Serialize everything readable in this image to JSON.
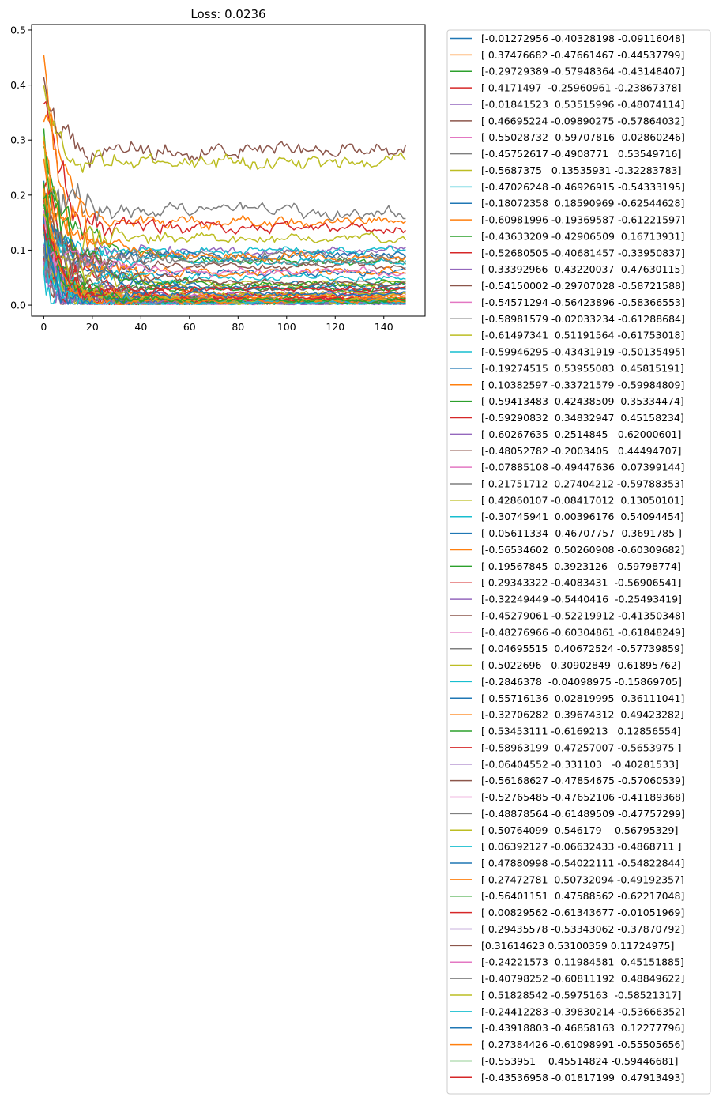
{
  "chart_data": {
    "type": "line",
    "title": "Loss: 0.0236",
    "xlabel": "",
    "ylabel": "",
    "xlim": [
      -5,
      157
    ],
    "ylim": [
      -0.02,
      0.51
    ],
    "xticks": [
      "0",
      "20",
      "40",
      "60",
      "80",
      "100",
      "120",
      "140"
    ],
    "yticks": [
      "0.0",
      "0.1",
      "0.2",
      "0.3",
      "0.4",
      "0.5"
    ],
    "n_points": 150,
    "legend_position": "outside-right",
    "series": [
      {
        "name": "[-0.01272956 -0.40328198 -0.09116048]",
        "color": "#1f77b4",
        "start": 0.1,
        "end": 0.035
      },
      {
        "name": "[ 0.37476682 -0.47661467 -0.44537799]",
        "color": "#ff7f0e",
        "start": 0.45,
        "end": 0.15
      },
      {
        "name": "[-0.29729389 -0.57948364 -0.43148407]",
        "color": "#2ca02c",
        "start": 0.3,
        "end": 0.01
      },
      {
        "name": "[ 0.4171497  -0.25960961 -0.23867378]",
        "color": "#d62728",
        "start": 0.39,
        "end": 0.14
      },
      {
        "name": "[-0.01841523  0.53515996 -0.48074114]",
        "color": "#9467bd",
        "start": 0.2,
        "end": 0.1
      },
      {
        "name": "[ 0.46695224 -0.09890275 -0.57864032]",
        "color": "#8c564b",
        "start": 0.4,
        "end": 0.28
      },
      {
        "name": "[-0.55028732 -0.59707816 -0.02860246]",
        "color": "#e377c2",
        "start": 0.08,
        "end": 0.02
      },
      {
        "name": "[-0.45752617 -0.4908771   0.53549716]",
        "color": "#7f7f7f",
        "start": 0.12,
        "end": 0.17
      },
      {
        "name": "[-0.5687375   0.13535931 -0.32283783]",
        "color": "#bcbd22",
        "start": 0.42,
        "end": 0.26
      },
      {
        "name": "[-0.47026248 -0.46926915 -0.54333195]",
        "color": "#17becf",
        "start": 0.15,
        "end": 0.005
      },
      {
        "name": "[-0.18072358  0.18590969 -0.62544628]",
        "color": "#1f77b4",
        "start": 0.22,
        "end": 0.06
      },
      {
        "name": "[-0.60981996 -0.19369587 -0.61221597]",
        "color": "#ff7f0e",
        "start": 0.3,
        "end": 0.01
      },
      {
        "name": "[-0.43633209 -0.42906509  0.16713931]",
        "color": "#2ca02c",
        "start": 0.26,
        "end": 0.08
      },
      {
        "name": "[-0.52680505 -0.40681457 -0.33950837]",
        "color": "#d62728",
        "start": 0.25,
        "end": 0.01
      },
      {
        "name": "[ 0.33392966 -0.43220037 -0.47630115]",
        "color": "#9467bd",
        "start": 0.18,
        "end": 0.02
      },
      {
        "name": "[-0.54150002 -0.29707028 -0.58721588]",
        "color": "#8c564b",
        "start": 0.14,
        "end": 0.03
      },
      {
        "name": "[-0.54571294 -0.56423896 -0.58366553]",
        "color": "#e377c2",
        "start": 0.09,
        "end": 0.01
      },
      {
        "name": "[-0.58981579 -0.02033234 -0.61288684]",
        "color": "#7f7f7f",
        "start": 0.11,
        "end": 0.09
      },
      {
        "name": "[-0.61497341  0.51191564 -0.61753018]",
        "color": "#bcbd22",
        "start": 0.33,
        "end": 0.12
      },
      {
        "name": "[-0.59946295 -0.43431919 -0.50135495]",
        "color": "#17becf",
        "start": 0.1,
        "end": 0.1
      },
      {
        "name": "[-0.19274515  0.53955083  0.45815191]",
        "color": "#1f77b4",
        "start": 0.17,
        "end": 0.09
      },
      {
        "name": "[ 0.10382597 -0.33721579 -0.59984809]",
        "color": "#ff7f0e",
        "start": 0.21,
        "end": 0.015
      },
      {
        "name": "[-0.59413483  0.42438509  0.35334474]",
        "color": "#2ca02c",
        "start": 0.19,
        "end": 0.03
      },
      {
        "name": "[-0.59290832  0.34832947  0.45158234]",
        "color": "#d62728",
        "start": 0.16,
        "end": 0.02
      },
      {
        "name": "[-0.60267635  0.2514845  -0.62000601]",
        "color": "#9467bd",
        "start": 0.12,
        "end": 0.008
      },
      {
        "name": "[-0.48052782 -0.2003405   0.44494707]",
        "color": "#8c564b",
        "start": 0.13,
        "end": 0.07
      },
      {
        "name": "[-0.07885108 -0.49447636  0.07399144]",
        "color": "#e377c2",
        "start": 0.07,
        "end": 0.005
      },
      {
        "name": "[ 0.21751712  0.27404212 -0.59788353]",
        "color": "#7f7f7f",
        "start": 0.15,
        "end": 0.01
      },
      {
        "name": "[ 0.42860107 -0.08417012  0.13050101]",
        "color": "#bcbd22",
        "start": 0.11,
        "end": 0.04
      },
      {
        "name": "[-0.30745941  0.00396176  0.54094454]",
        "color": "#17becf",
        "start": 0.18,
        "end": 0.08
      },
      {
        "name": "[-0.05611334 -0.46707757 -0.3691785 ]",
        "color": "#1f77b4",
        "start": 0.09,
        "end": 0.006
      },
      {
        "name": "[-0.56534602  0.50260908 -0.60309682]",
        "color": "#ff7f0e",
        "start": 0.28,
        "end": 0.06
      },
      {
        "name": "[ 0.19567845  0.3923126  -0.59798774]",
        "color": "#2ca02c",
        "start": 0.14,
        "end": 0.01
      },
      {
        "name": "[ 0.29343322 -0.4083431  -0.56906541]",
        "color": "#d62728",
        "start": 0.2,
        "end": 0.012
      },
      {
        "name": "[-0.32249449 -0.5440416  -0.25493419]",
        "color": "#9467bd",
        "start": 0.08,
        "end": 0.004
      },
      {
        "name": "[-0.45279061 -0.52219912 -0.41350348]",
        "color": "#8c564b",
        "start": 0.1,
        "end": 0.007
      },
      {
        "name": "[-0.48276966 -0.60304861 -0.61848249]",
        "color": "#e377c2",
        "start": 0.06,
        "end": 0.003
      },
      {
        "name": "[ 0.04695515  0.40672524 -0.57739859]",
        "color": "#7f7f7f",
        "start": 0.16,
        "end": 0.01
      },
      {
        "name": "[ 0.5022696   0.30902849 -0.61895762]",
        "color": "#bcbd22",
        "start": 0.23,
        "end": 0.02
      },
      {
        "name": "[-0.2846378  -0.04098975 -0.15869705]",
        "color": "#17becf",
        "start": 0.12,
        "end": 0.05
      },
      {
        "name": "[-0.55716136  0.02819995 -0.36111041]",
        "color": "#1f77b4",
        "start": 0.13,
        "end": 0.03
      },
      {
        "name": "[-0.32706282  0.39674312  0.49423282]",
        "color": "#ff7f0e",
        "start": 0.19,
        "end": 0.09
      },
      {
        "name": "[ 0.53453111 -0.6169213   0.12856554]",
        "color": "#2ca02c",
        "start": 0.24,
        "end": 0.04
      },
      {
        "name": "[-0.58963199  0.47257007 -0.5653975 ]",
        "color": "#d62728",
        "start": 0.17,
        "end": 0.008
      },
      {
        "name": "[-0.06404552 -0.331103   -0.40281533]",
        "color": "#9467bd",
        "start": 0.07,
        "end": 0.004
      },
      {
        "name": "[-0.56168627 -0.47854675 -0.57060539]",
        "color": "#8c564b",
        "start": 0.09,
        "end": 0.005
      },
      {
        "name": "[-0.52765485 -0.47652106 -0.41189368]",
        "color": "#e377c2",
        "start": 0.08,
        "end": 0.006
      },
      {
        "name": "[-0.48878564 -0.61489509 -0.47757299]",
        "color": "#7f7f7f",
        "start": 0.07,
        "end": 0.004
      },
      {
        "name": "[ 0.50764099 -0.546179   -0.56795329]",
        "color": "#bcbd22",
        "start": 0.14,
        "end": 0.006
      },
      {
        "name": "[ 0.06392127 -0.06632433 -0.4868711 ]",
        "color": "#17becf",
        "start": 0.05,
        "end": 0.003
      },
      {
        "name": "[ 0.47880998 -0.54022111 -0.54822844]",
        "color": "#1f77b4",
        "start": 0.12,
        "end": 0.005
      },
      {
        "name": "[ 0.27472781  0.50732094 -0.49192357]",
        "color": "#ff7f0e",
        "start": 0.26,
        "end": 0.015
      },
      {
        "name": "[-0.56401151  0.47588562 -0.62217048]",
        "color": "#2ca02c",
        "start": 0.22,
        "end": 0.007
      },
      {
        "name": "[ 0.00829562 -0.61343677 -0.01051969]",
        "color": "#d62728",
        "start": 0.11,
        "end": 0.01
      },
      {
        "name": "[ 0.29435578 -0.53343062 -0.37870792]",
        "color": "#9467bd",
        "start": 0.1,
        "end": 0.005
      },
      {
        "name": "[0.31614623 0.53100359 0.11724975]",
        "color": "#8c564b",
        "start": 0.15,
        "end": 0.04
      },
      {
        "name": "[-0.24221573  0.11984581  0.45151885]",
        "color": "#e377c2",
        "start": 0.13,
        "end": 0.06
      },
      {
        "name": "[-0.40798252 -0.60811192  0.48849622]",
        "color": "#7f7f7f",
        "start": 0.12,
        "end": 0.08
      },
      {
        "name": "[ 0.51828542 -0.5975163  -0.58521317]",
        "color": "#bcbd22",
        "start": 0.16,
        "end": 0.008
      },
      {
        "name": "[-0.24412283 -0.39830214 -0.53666352]",
        "color": "#17becf",
        "start": 0.07,
        "end": 0.004
      },
      {
        "name": "[-0.43918803 -0.46858163  0.12277796]",
        "color": "#1f77b4",
        "start": 0.12,
        "end": 0.02
      },
      {
        "name": "[ 0.27384426 -0.61098991 -0.55505656]",
        "color": "#ff7f0e",
        "start": 0.2,
        "end": 0.008
      },
      {
        "name": "[-0.553951    0.45514824 -0.59446681]",
        "color": "#2ca02c",
        "start": 0.21,
        "end": 0.01
      },
      {
        "name": "[-0.43536958 -0.01817199  0.47913493]",
        "color": "#d62728",
        "start": 0.15,
        "end": 0.03
      }
    ]
  }
}
